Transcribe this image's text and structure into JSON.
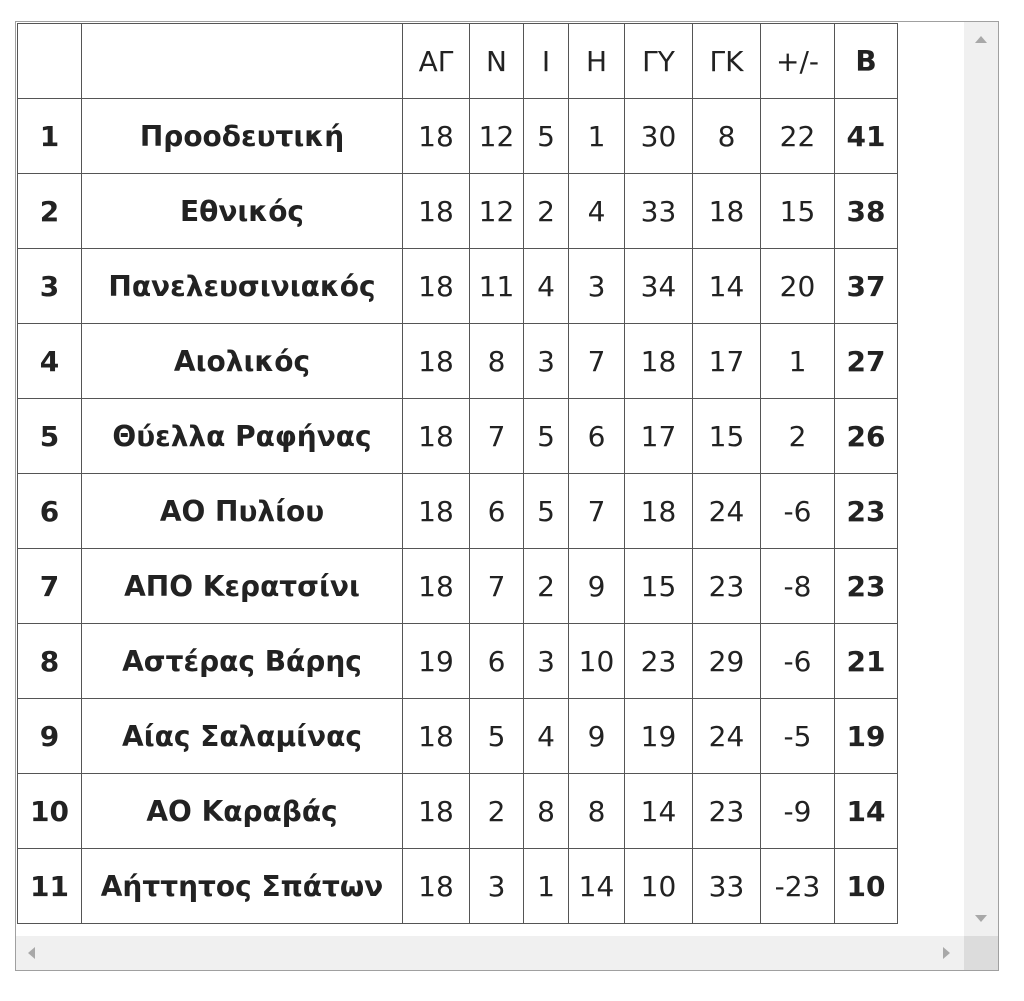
{
  "columns": [
    "",
    "",
    "ΑΓ",
    "Ν",
    "Ι",
    "Η",
    "ΓΥ",
    "ΓΚ",
    "+/-",
    "Β"
  ],
  "rows": [
    [
      "1",
      "Προοδευτική",
      "18",
      "12",
      "5",
      "1",
      "30",
      "8",
      "22",
      "41"
    ],
    [
      "2",
      "Εθνικός",
      "18",
      "12",
      "2",
      "4",
      "33",
      "18",
      "15",
      "38"
    ],
    [
      "3",
      "Πανελευσινιακός",
      "18",
      "11",
      "4",
      "3",
      "34",
      "14",
      "20",
      "37"
    ],
    [
      "4",
      "Αιολικός",
      "18",
      "8",
      "3",
      "7",
      "18",
      "17",
      "1",
      "27"
    ],
    [
      "5",
      "Θύελλα Ραφήνας",
      "18",
      "7",
      "5",
      "6",
      "17",
      "15",
      "2",
      "26"
    ],
    [
      "6",
      "ΑΟ Πυλίου",
      "18",
      "6",
      "5",
      "7",
      "18",
      "24",
      "-6",
      "23"
    ],
    [
      "7",
      "ΑΠΟ Κερατσίνι",
      "18",
      "7",
      "2",
      "9",
      "15",
      "23",
      "-8",
      "23"
    ],
    [
      "8",
      "Αστέρας Βάρης",
      "19",
      "6",
      "3",
      "10",
      "23",
      "29",
      "-6",
      "21"
    ],
    [
      "9",
      "Αίας Σαλαμίνας",
      "18",
      "5",
      "4",
      "9",
      "19",
      "24",
      "-5",
      "19"
    ],
    [
      "10",
      "ΑΟ Καραβάς",
      "18",
      "2",
      "8",
      "8",
      "14",
      "23",
      "-9",
      "14"
    ],
    [
      "11",
      "Αήττητος Σπάτων",
      "18",
      "3",
      "1",
      "14",
      "10",
      "33",
      "-23",
      "10"
    ]
  ]
}
